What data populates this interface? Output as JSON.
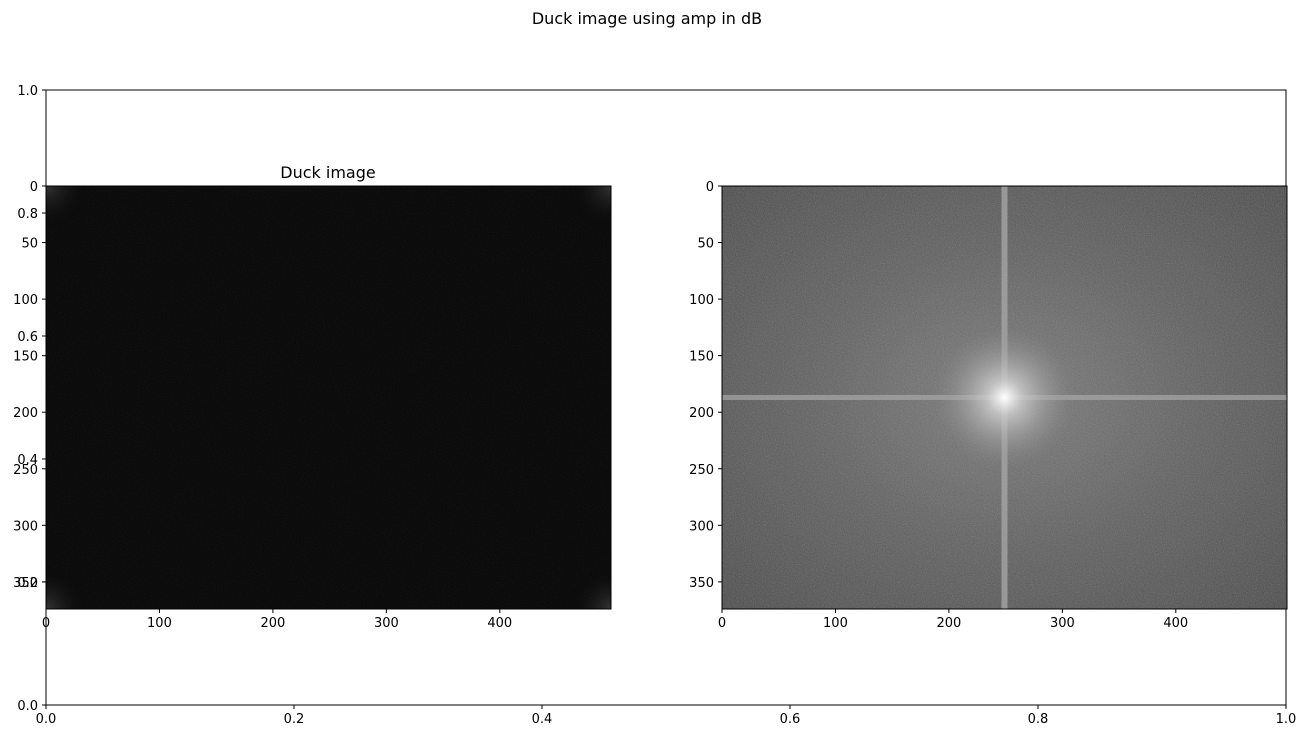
{
  "figure": {
    "suptitle": "Duck image using amp in dB"
  },
  "chart_data": [
    {
      "type": "axes",
      "role": "background-axes",
      "title": "",
      "xlim": [
        0.0,
        1.0
      ],
      "ylim": [
        0.0,
        1.0
      ],
      "xticks": [
        0.0,
        0.2,
        0.4,
        0.6,
        0.8,
        1.0
      ],
      "xtick_labels": [
        "0.0",
        "0.2",
        "0.4",
        "0.6",
        "0.8",
        "1.0"
      ],
      "yticks": [
        0.0,
        0.2,
        0.4,
        0.6,
        0.8,
        1.0
      ],
      "ytick_labels": [
        "0.0",
        "0.2",
        "0.4",
        "0.6",
        "0.8",
        "1.0"
      ],
      "grid": false
    },
    {
      "type": "heatmap",
      "role": "image",
      "title": "Duck image",
      "colormap": "gray",
      "xlim": [
        0,
        498
      ],
      "ylim": [
        374,
        0
      ],
      "xticks": [
        0,
        100,
        200,
        300,
        400
      ],
      "xtick_labels": [
        "0",
        "100",
        "200",
        "300",
        "400"
      ],
      "yticks": [
        0,
        50,
        100,
        150,
        200,
        250,
        300,
        350
      ],
      "ytick_labels": [
        "0",
        "50",
        "100",
        "150",
        "200",
        "250",
        "300",
        "350"
      ],
      "appearance": "near-black with faint brighter corners",
      "grid": false
    },
    {
      "type": "heatmap",
      "role": "spectrum",
      "title": "",
      "colormap": "gray",
      "xlim": [
        0,
        498
      ],
      "ylim": [
        374,
        0
      ],
      "xticks": [
        0,
        100,
        200,
        300,
        400
      ],
      "xtick_labels": [
        "0",
        "100",
        "200",
        "300",
        "400"
      ],
      "yticks": [
        0,
        50,
        100,
        150,
        200,
        250,
        300,
        350
      ],
      "ytick_labels": [
        "0",
        "50",
        "100",
        "150",
        "200",
        "250",
        "300",
        "350"
      ],
      "center": [
        249,
        187
      ],
      "appearance": "grey noise with bright center and cross-shaped lines",
      "grid": false
    }
  ]
}
